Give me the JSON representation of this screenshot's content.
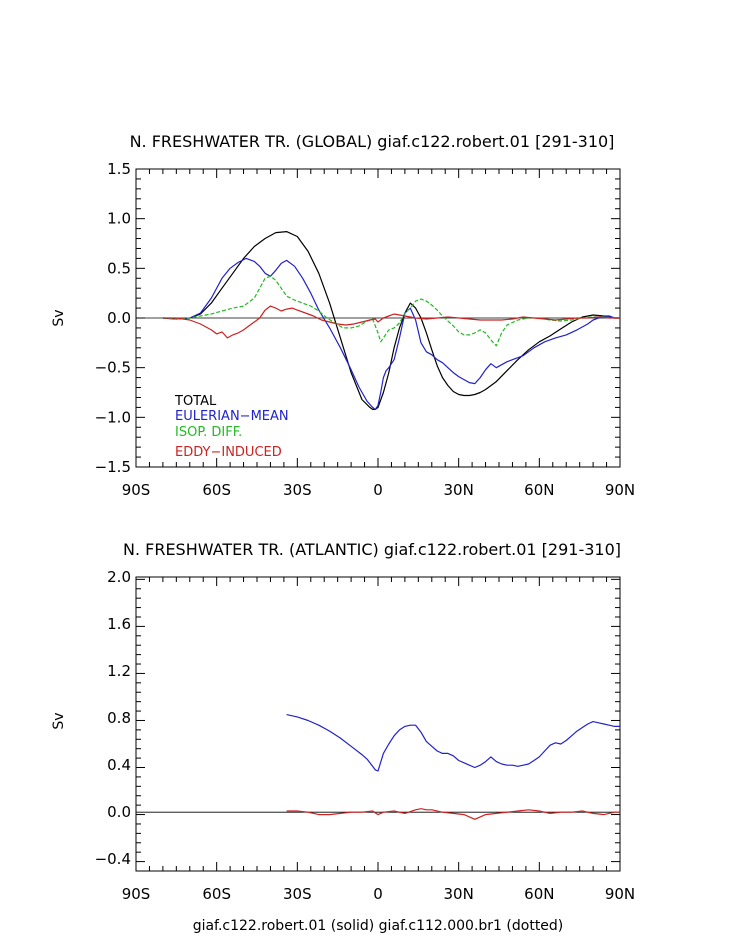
{
  "chart_data": [
    {
      "type": "line",
      "title": "N. FRESHWATER TR. (GLOBAL) giaf.c122.robert.01 [291-310]",
      "ylabel": "Sv",
      "xlim": [
        -90,
        90
      ],
      "ylim": [
        -1.5,
        1.5
      ],
      "x_ticks": [
        "90S",
        "60S",
        "30S",
        "0",
        "30N",
        "60N",
        "90N"
      ],
      "y_ticks": [
        "1.5",
        "1.0",
        "0.5",
        "0.0",
        "−0.5",
        "−1.0",
        "−1.5"
      ],
      "legend": [
        "TOTAL",
        "EULERIAN−MEAN",
        "ISOP. DIFF.",
        "EDDY−INDUCED"
      ],
      "series": [
        {
          "name": "TOTAL",
          "color": "#000000",
          "dash": "solid",
          "x": [
            -80,
            -75,
            -70,
            -66,
            -62,
            -58,
            -54,
            -50,
            -46,
            -42,
            -38,
            -34,
            -30,
            -26,
            -22,
            -18,
            -14,
            -10,
            -6,
            -3,
            -2,
            -1,
            0,
            2,
            4,
            6,
            8,
            10,
            12,
            14,
            16,
            18,
            20,
            22,
            24,
            26,
            28,
            30,
            32,
            34,
            36,
            38,
            40,
            44,
            48,
            52,
            56,
            60,
            64,
            68,
            72,
            76,
            80,
            84,
            88,
            90
          ],
          "y": [
            0.0,
            -0.01,
            0.0,
            0.04,
            0.15,
            0.3,
            0.45,
            0.6,
            0.72,
            0.8,
            0.86,
            0.87,
            0.82,
            0.67,
            0.45,
            0.15,
            -0.2,
            -0.55,
            -0.82,
            -0.9,
            -0.92,
            -0.92,
            -0.9,
            -0.75,
            -0.55,
            -0.3,
            -0.1,
            0.05,
            0.15,
            0.1,
            0.0,
            -0.15,
            -0.32,
            -0.48,
            -0.6,
            -0.68,
            -0.74,
            -0.77,
            -0.78,
            -0.78,
            -0.77,
            -0.75,
            -0.72,
            -0.64,
            -0.53,
            -0.42,
            -0.32,
            -0.24,
            -0.18,
            -0.11,
            -0.04,
            0.01,
            0.03,
            0.02,
            0.0,
            0.0
          ]
        },
        {
          "name": "EULERIAN−MEAN",
          "color": "#2222cc",
          "dash": "solid",
          "x": [
            -80,
            -75,
            -70,
            -66,
            -62,
            -58,
            -55,
            -52,
            -49,
            -46,
            -44,
            -42,
            -40,
            -38,
            -36,
            -34,
            -31,
            -28,
            -25,
            -22,
            -18,
            -14,
            -10,
            -7,
            -4,
            -2,
            -1,
            0,
            1,
            2,
            3,
            4,
            6,
            8,
            10,
            12,
            14,
            16,
            18,
            20,
            22,
            24,
            26,
            28,
            30,
            32,
            34,
            36,
            38,
            40,
            42,
            44,
            46,
            48,
            50,
            54,
            58,
            62,
            66,
            70,
            74,
            78,
            80,
            82,
            84,
            86,
            88,
            90
          ],
          "y": [
            0.0,
            -0.01,
            0.0,
            0.05,
            0.2,
            0.4,
            0.5,
            0.56,
            0.6,
            0.57,
            0.52,
            0.45,
            0.42,
            0.48,
            0.55,
            0.58,
            0.52,
            0.4,
            0.25,
            0.08,
            -0.1,
            -0.3,
            -0.52,
            -0.7,
            -0.84,
            -0.9,
            -0.92,
            -0.88,
            -0.75,
            -0.6,
            -0.53,
            -0.5,
            -0.42,
            -0.2,
            0.05,
            0.1,
            -0.02,
            -0.25,
            -0.34,
            -0.37,
            -0.42,
            -0.45,
            -0.5,
            -0.55,
            -0.59,
            -0.62,
            -0.65,
            -0.66,
            -0.6,
            -0.52,
            -0.46,
            -0.5,
            -0.47,
            -0.44,
            -0.42,
            -0.38,
            -0.3,
            -0.24,
            -0.2,
            -0.17,
            -0.12,
            -0.06,
            -0.02,
            0.0,
            0.02,
            0.02,
            0.0,
            0.0
          ]
        },
        {
          "name": "ISOP. DIFF.",
          "color": "#22bb22",
          "dash": "dashed",
          "x": [
            -80,
            -75,
            -70,
            -66,
            -62,
            -58,
            -54,
            -50,
            -46,
            -44,
            -42,
            -40,
            -38,
            -36,
            -34,
            -31,
            -28,
            -25,
            -22,
            -19,
            -16,
            -13,
            -10,
            -7,
            -4,
            -2,
            0,
            1,
            2,
            4,
            6,
            8,
            10,
            12,
            14,
            16,
            18,
            20,
            22,
            24,
            26,
            28,
            30,
            32,
            34,
            36,
            38,
            40,
            42,
            44,
            46,
            48,
            52,
            56,
            60,
            64,
            68,
            72,
            76,
            80,
            84,
            88,
            90
          ],
          "y": [
            0.0,
            -0.01,
            0.0,
            0.02,
            0.04,
            0.07,
            0.1,
            0.12,
            0.2,
            0.3,
            0.4,
            0.42,
            0.38,
            0.3,
            0.22,
            0.18,
            0.15,
            0.12,
            0.07,
            0.0,
            -0.05,
            -0.1,
            -0.1,
            -0.08,
            -0.03,
            -0.01,
            -0.15,
            -0.24,
            -0.2,
            -0.12,
            -0.1,
            -0.05,
            0.05,
            0.1,
            0.17,
            0.19,
            0.17,
            0.13,
            0.08,
            0.02,
            -0.03,
            -0.08,
            -0.14,
            -0.17,
            -0.17,
            -0.15,
            -0.12,
            -0.15,
            -0.22,
            -0.28,
            -0.15,
            -0.07,
            -0.02,
            0.0,
            0.0,
            -0.02,
            -0.03,
            -0.02,
            0.0,
            0.01,
            0.01,
            0.0,
            0.0
          ]
        },
        {
          "name": "EDDY−INDUCED",
          "color": "#cc2222",
          "dash": "solid",
          "x": [
            -80,
            -75,
            -70,
            -66,
            -62,
            -60,
            -58,
            -56,
            -54,
            -52,
            -50,
            -48,
            -46,
            -44,
            -42,
            -40,
            -38,
            -36,
            -34,
            -32,
            -30,
            -27,
            -24,
            -21,
            -18,
            -15,
            -12,
            -9,
            -6,
            -3,
            -1,
            0,
            2,
            4,
            6,
            10,
            14,
            18,
            22,
            26,
            30,
            34,
            38,
            42,
            46,
            50,
            54,
            58,
            62,
            66,
            70,
            74,
            78,
            82,
            86,
            90
          ],
          "y": [
            0.0,
            0.0,
            -0.02,
            -0.06,
            -0.12,
            -0.16,
            -0.14,
            -0.2,
            -0.17,
            -0.15,
            -0.12,
            -0.08,
            -0.04,
            0.0,
            0.08,
            0.12,
            0.1,
            0.07,
            0.09,
            0.1,
            0.08,
            0.05,
            0.02,
            -0.02,
            -0.04,
            -0.06,
            -0.07,
            -0.06,
            -0.04,
            -0.02,
            -0.01,
            -0.04,
            0.0,
            0.02,
            0.04,
            0.02,
            0.0,
            -0.01,
            0.0,
            0.01,
            0.0,
            -0.01,
            -0.02,
            -0.02,
            -0.02,
            -0.01,
            0.01,
            0.0,
            -0.01,
            -0.02,
            -0.01,
            0.0,
            0.0,
            0.01,
            0.0,
            0.0
          ]
        }
      ]
    },
    {
      "type": "line",
      "title": "N. FRESHWATER TR. (ATLANTIC) giaf.c122.robert.01 [291-310]",
      "ylabel": "Sv",
      "xlabel": "giaf.c122.robert.01 (solid) giaf.c112.000.br1 (dotted)",
      "xlim": [
        -90,
        90
      ],
      "ylim": [
        -0.5,
        2.0
      ],
      "x_ticks": [
        "90S",
        "60S",
        "30S",
        "0",
        "30N",
        "60N",
        "90N"
      ],
      "y_ticks": [
        "2.0",
        "1.6",
        "1.2",
        "0.8",
        "0.4",
        "0.0",
        "−0.4"
      ],
      "series": [
        {
          "color": "#2222cc",
          "dash": "solid",
          "x": [
            -34,
            -30,
            -26,
            -22,
            -18,
            -14,
            -10,
            -6,
            -4,
            -2,
            -1,
            0,
            2,
            4,
            6,
            8,
            10,
            12,
            14,
            16,
            18,
            20,
            22,
            24,
            26,
            28,
            30,
            32,
            34,
            36,
            38,
            40,
            42,
            44,
            46,
            48,
            50,
            52,
            54,
            56,
            58,
            60,
            62,
            64,
            66,
            68,
            70,
            72,
            74,
            76,
            78,
            80,
            82,
            84,
            86,
            88,
            90
          ],
          "y": [
            0.83,
            0.81,
            0.78,
            0.74,
            0.69,
            0.63,
            0.56,
            0.49,
            0.45,
            0.39,
            0.36,
            0.35,
            0.5,
            0.58,
            0.65,
            0.7,
            0.73,
            0.74,
            0.74,
            0.68,
            0.6,
            0.56,
            0.52,
            0.5,
            0.5,
            0.48,
            0.44,
            0.42,
            0.4,
            0.38,
            0.4,
            0.43,
            0.47,
            0.43,
            0.41,
            0.4,
            0.4,
            0.39,
            0.4,
            0.41,
            0.44,
            0.47,
            0.52,
            0.57,
            0.59,
            0.58,
            0.61,
            0.65,
            0.69,
            0.72,
            0.75,
            0.77,
            0.76,
            0.75,
            0.74,
            0.73,
            0.73
          ]
        },
        {
          "color": "#cc2222",
          "dash": "solid",
          "x": [
            -34,
            -30,
            -26,
            -22,
            -18,
            -14,
            -10,
            -6,
            -2,
            0,
            2,
            6,
            10,
            14,
            16,
            18,
            20,
            24,
            28,
            32,
            34,
            36,
            38,
            40,
            44,
            48,
            52,
            56,
            60,
            64,
            68,
            72,
            76,
            80,
            84,
            88,
            90
          ],
          "y": [
            0.01,
            0.01,
            0.0,
            -0.02,
            -0.02,
            -0.01,
            0.0,
            0.0,
            0.01,
            -0.02,
            0.0,
            0.01,
            -0.01,
            0.02,
            0.03,
            0.02,
            0.02,
            0.0,
            -0.01,
            -0.02,
            -0.04,
            -0.06,
            -0.04,
            -0.02,
            -0.01,
            0.0,
            0.01,
            0.02,
            0.01,
            -0.01,
            0.0,
            0.0,
            0.01,
            -0.01,
            -0.02,
            0.0,
            0.0
          ]
        }
      ]
    }
  ]
}
